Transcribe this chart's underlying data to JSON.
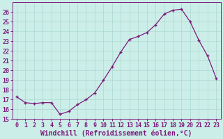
{
  "x": [
    0,
    1,
    2,
    3,
    4,
    5,
    6,
    7,
    8,
    9,
    10,
    11,
    12,
    13,
    14,
    15,
    16,
    17,
    18,
    19,
    20,
    21,
    22,
    23
  ],
  "y": [
    17.3,
    16.7,
    16.6,
    16.7,
    16.7,
    15.5,
    15.8,
    16.5,
    17.0,
    17.7,
    19.0,
    20.4,
    21.9,
    23.2,
    23.5,
    23.9,
    24.7,
    25.8,
    26.2,
    26.3,
    25.0,
    23.1,
    21.5,
    19.2
  ],
  "line_color": "#7b1a7b",
  "marker_color": "#7b1a7b",
  "bg_color": "#cceee8",
  "grid_color": "#aad8d0",
  "xlabel": "Windchill (Refroidissement éolien,°C)",
  "ylim": [
    15,
    27
  ],
  "xlim": [
    -0.5,
    23.5
  ],
  "yticks": [
    15,
    16,
    17,
    18,
    19,
    20,
    21,
    22,
    23,
    24,
    25,
    26
  ],
  "xticks": [
    0,
    1,
    2,
    3,
    4,
    5,
    6,
    7,
    8,
    9,
    10,
    11,
    12,
    13,
    14,
    15,
    16,
    17,
    18,
    19,
    20,
    21,
    22,
    23
  ],
  "tick_color": "#7b1a7b",
  "label_fontsize": 7.0,
  "tick_fontsize": 6.0
}
